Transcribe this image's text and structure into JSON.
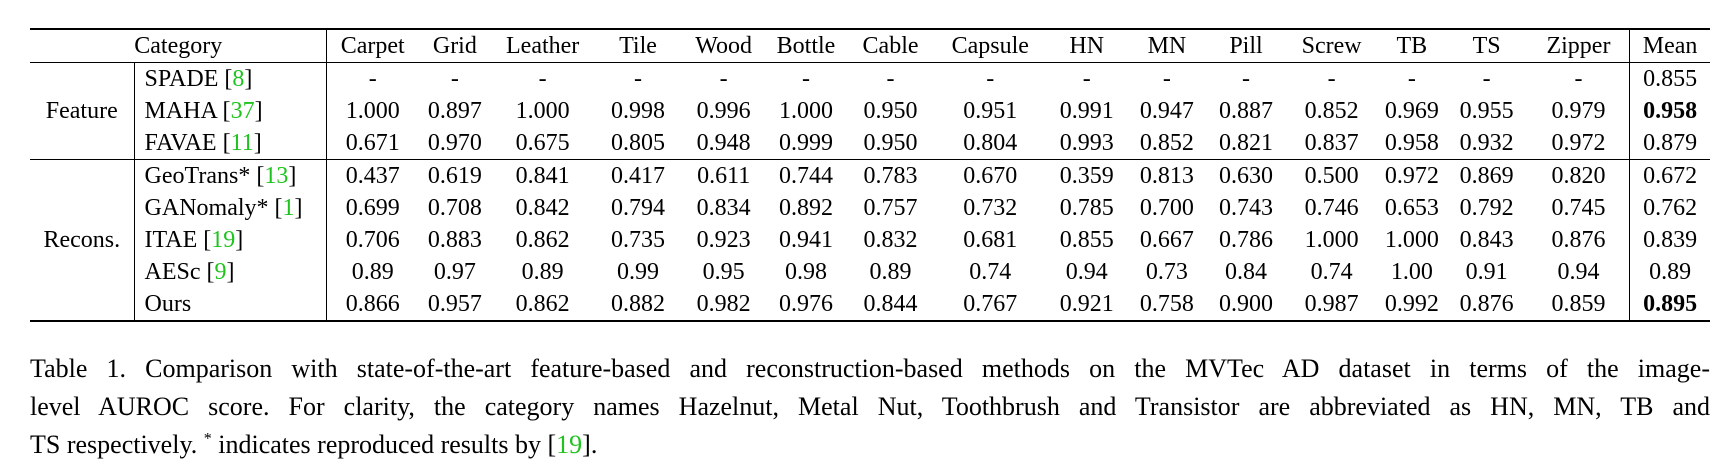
{
  "table": {
    "header": {
      "category": "Category",
      "columns": [
        "Carpet",
        "Grid",
        "Leather",
        "Tile",
        "Wood",
        "Bottle",
        "Cable",
        "Capsule",
        "HN",
        "MN",
        "Pill",
        "Screw",
        "TB",
        "TS",
        "Zipper"
      ],
      "mean": "Mean"
    },
    "groups": [
      {
        "label": "Feature",
        "rows": [
          {
            "method": "SPADE [",
            "cite": "8",
            "close": "]",
            "values": [
              "-",
              "-",
              "-",
              "-",
              "-",
              "-",
              "-",
              "-",
              "-",
              "-",
              "-",
              "-",
              "-",
              "-",
              "-"
            ],
            "mean": "0.855",
            "best": false
          },
          {
            "method": "MAHA [",
            "cite": "37",
            "close": "]",
            "values": [
              "1.000",
              "0.897",
              "1.000",
              "0.998",
              "0.996",
              "1.000",
              "0.950",
              "0.951",
              "0.991",
              "0.947",
              "0.887",
              "0.852",
              "0.969",
              "0.955",
              "0.979"
            ],
            "mean": "0.958",
            "best": true
          },
          {
            "method": "FAVAE [",
            "cite": "11",
            "close": "]",
            "values": [
              "0.671",
              "0.970",
              "0.675",
              "0.805",
              "0.948",
              "0.999",
              "0.950",
              "0.804",
              "0.993",
              "0.852",
              "0.821",
              "0.837",
              "0.958",
              "0.932",
              "0.972"
            ],
            "mean": "0.879",
            "best": false
          }
        ]
      },
      {
        "label": "Recons.",
        "rows": [
          {
            "method": "GeoTrans* [",
            "cite": "13",
            "close": "]",
            "values": [
              "0.437",
              "0.619",
              "0.841",
              "0.417",
              "0.611",
              "0.744",
              "0.783",
              "0.670",
              "0.359",
              "0.813",
              "0.630",
              "0.500",
              "0.972",
              "0.869",
              "0.820"
            ],
            "mean": "0.672",
            "best": false
          },
          {
            "method": "GANomaly* [",
            "cite": "1",
            "close": "]",
            "values": [
              "0.699",
              "0.708",
              "0.842",
              "0.794",
              "0.834",
              "0.892",
              "0.757",
              "0.732",
              "0.785",
              "0.700",
              "0.743",
              "0.746",
              "0.653",
              "0.792",
              "0.745"
            ],
            "mean": "0.762",
            "best": false
          },
          {
            "method": "ITAE [",
            "cite": "19",
            "close": "]",
            "values": [
              "0.706",
              "0.883",
              "0.862",
              "0.735",
              "0.923",
              "0.941",
              "0.832",
              "0.681",
              "0.855",
              "0.667",
              "0.786",
              "1.000",
              "1.000",
              "0.843",
              "0.876"
            ],
            "mean": "0.839",
            "best": false
          },
          {
            "method": "AESc [",
            "cite": "9",
            "close": "]",
            "values": [
              "0.89",
              "0.97",
              "0.89",
              "0.99",
              "0.95",
              "0.98",
              "0.89",
              "0.74",
              "0.94",
              "0.73",
              "0.84",
              "0.74",
              "1.00",
              "0.91",
              "0.94"
            ],
            "mean": "0.89",
            "best": false
          },
          {
            "method": "Ours",
            "cite": "",
            "close": "",
            "values": [
              "0.866",
              "0.957",
              "0.862",
              "0.882",
              "0.982",
              "0.976",
              "0.844",
              "0.767",
              "0.921",
              "0.758",
              "0.900",
              "0.987",
              "0.992",
              "0.876",
              "0.859"
            ],
            "mean": "0.895",
            "best": true
          }
        ]
      }
    ]
  },
  "caption": {
    "line1": "Table 1. Comparison with state-of-the-art feature-based and reconstruction-based methods on the MVTec AD dataset in terms of the image-",
    "line2": "level AUROC score. For clarity, the category names Hazelnut, Metal Nut, Toothbrush and Transistor are abbreviated as HN, MN, TB and",
    "line3_a": "TS respectively.",
    "line3_star": "*",
    "line3_b": " indicates reproduced results by [",
    "line3_cite": "19",
    "line3_c": "]."
  },
  "colors": {
    "citation": "#1fc31f",
    "text": "#000000"
  }
}
